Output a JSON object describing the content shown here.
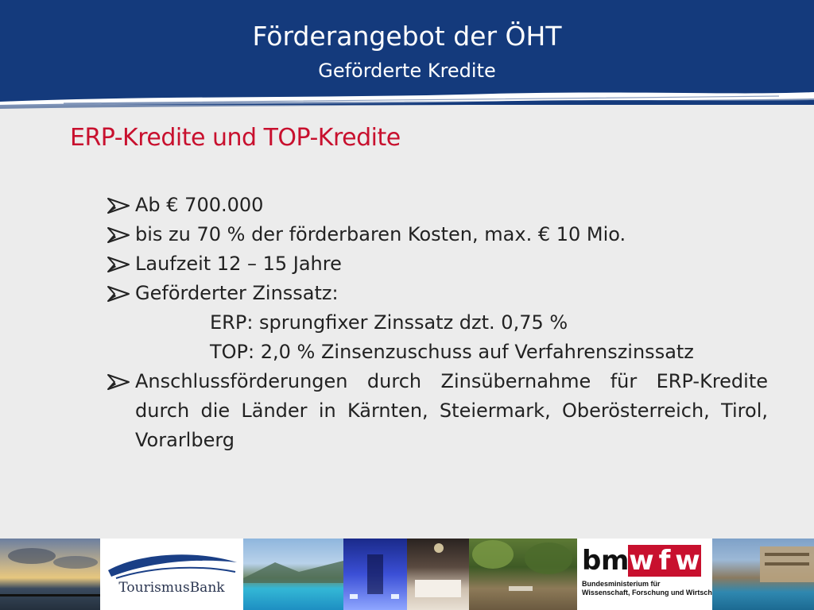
{
  "header": {
    "title": "Förderangebot der ÖHT",
    "subtitle": "Geförderte Kredite"
  },
  "heading": "ERP-Kredite  und TOP-Kredite",
  "bullets": [
    "Ab € 700.000",
    "bis zu 70 % der förderbaren Kosten, max. € 10 Mio.",
    "Laufzeit 12 – 15 Jahre",
    "Geförderter Zinssatz:"
  ],
  "sub_items": [
    "ERP:  sprungfixer Zinssatz dzt. 0,75 %",
    "TOP: 2,0 % Zinsenzuschuss auf Verfahrenszinssatz"
  ],
  "last_bullet": "Anschlussförderungen durch Zinsübernahme für ERP-Kredite durch die Länder in Kärnten, Steiermark, Oberösterreich, Tirol, Vorarlberg",
  "logos": {
    "tourismusbank": "TourismusBank",
    "bmwfw_letters": [
      "b",
      "m",
      "w",
      "f",
      "w"
    ],
    "bmwfw_line1": "Bundesministerium für",
    "bmwfw_line2": "Wissenschaft, Forschung und Wirtschaft"
  },
  "colors": {
    "header_blue": "#143a7c",
    "heading_red": "#c8102e",
    "background": "#ececec"
  },
  "icons": {
    "bullet": "arrow-bullet-icon"
  }
}
